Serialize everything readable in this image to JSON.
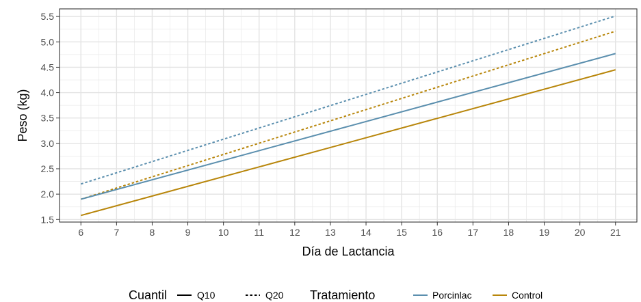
{
  "chart_data": {
    "type": "line",
    "xlabel": "Día de Lactancia",
    "ylabel": "Peso (kg)",
    "xlim": [
      5.4,
      21.6
    ],
    "ylim": [
      1.45,
      5.65
    ],
    "xticks": [
      6,
      7,
      8,
      9,
      10,
      11,
      12,
      13,
      14,
      15,
      16,
      17,
      18,
      19,
      20,
      21
    ],
    "yticks": [
      1.5,
      2.0,
      2.5,
      3.0,
      3.5,
      4.0,
      4.5,
      5.0,
      5.5
    ],
    "ytick_labels": [
      "1.5",
      "2.0",
      "2.5",
      "3.0",
      "3.5",
      "4.0",
      "4.5",
      "5.0",
      "5.5"
    ],
    "grid": true,
    "legend_position": "bottom",
    "legend": {
      "cuantil_title": "Cuantil",
      "cuantil_entries": [
        {
          "label": "Q10",
          "linetype": "solid"
        },
        {
          "label": "Q20",
          "linetype": "dashed"
        }
      ],
      "tratamiento_title": "Tratamiento",
      "tratamiento_entries": [
        {
          "label": "Porcinlac",
          "color": "#5b8fae"
        },
        {
          "label": "Control",
          "color": "#b8860b"
        }
      ]
    },
    "series": [
      {
        "name": "Porcinlac Q20",
        "color": "#5b8fae",
        "linetype": "dashed",
        "x": [
          6,
          21
        ],
        "y": [
          2.2,
          5.51
        ]
      },
      {
        "name": "Control Q20",
        "color": "#b8860b",
        "linetype": "dashed",
        "x": [
          6,
          21
        ],
        "y": [
          1.9,
          5.21
        ]
      },
      {
        "name": "Porcinlac Q10",
        "color": "#5b8fae",
        "linetype": "solid",
        "x": [
          6,
          21
        ],
        "y": [
          1.9,
          4.77
        ]
      },
      {
        "name": "Control Q10",
        "color": "#b8860b",
        "linetype": "solid",
        "x": [
          6,
          21
        ],
        "y": [
          1.58,
          4.45
        ]
      }
    ]
  }
}
